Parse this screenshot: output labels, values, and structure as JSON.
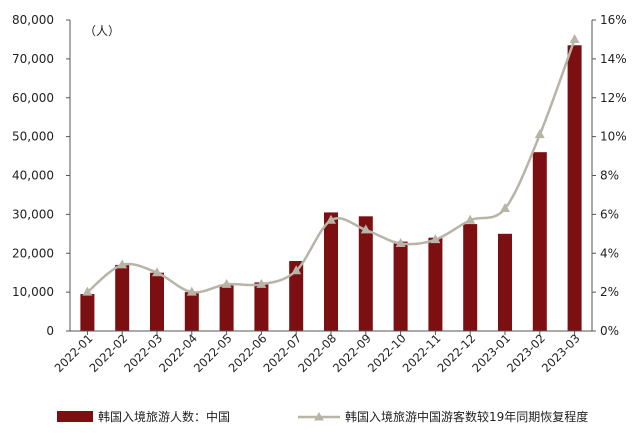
{
  "chart_data": {
    "type": "bar",
    "unit_label": "（人）",
    "categories": [
      "2022-01",
      "2022-02",
      "2022-03",
      "2022-04",
      "2022-05",
      "2022-06",
      "2022-07",
      "2022-08",
      "2022-09",
      "2022-10",
      "2022-11",
      "2022-12",
      "2023-01",
      "2023-02",
      "2023-03"
    ],
    "series": [
      {
        "name": "韩国入境旅游人数：中国",
        "type": "bar",
        "axis": "left",
        "color": "#7b0f12",
        "values": [
          9500,
          17000,
          15000,
          10000,
          11700,
          12500,
          18000,
          30500,
          29500,
          23000,
          24000,
          27500,
          25000,
          46000,
          73500
        ]
      },
      {
        "name": "韩国入境旅游中国游客数较19年同期恢复程度",
        "type": "line",
        "axis": "right",
        "color": "#b9b4a8",
        "marker": "triangle",
        "values": [
          2.0,
          3.4,
          3.0,
          2.0,
          2.4,
          2.4,
          3.1,
          5.7,
          5.2,
          4.5,
          4.7,
          5.7,
          6.3,
          10.1,
          15.0
        ]
      }
    ],
    "y_left": {
      "ylim": [
        0,
        80000
      ],
      "ticks": [
        "0",
        "10,000",
        "20,000",
        "30,000",
        "40,000",
        "50,000",
        "60,000",
        "70,000",
        "80,000"
      ]
    },
    "y_right": {
      "ylim": [
        0,
        16
      ],
      "ticks": [
        "0%",
        "2%",
        "4%",
        "6%",
        "8%",
        "10%",
        "12%",
        "14%",
        "16%"
      ]
    },
    "grid": false,
    "legend": "bottom"
  }
}
